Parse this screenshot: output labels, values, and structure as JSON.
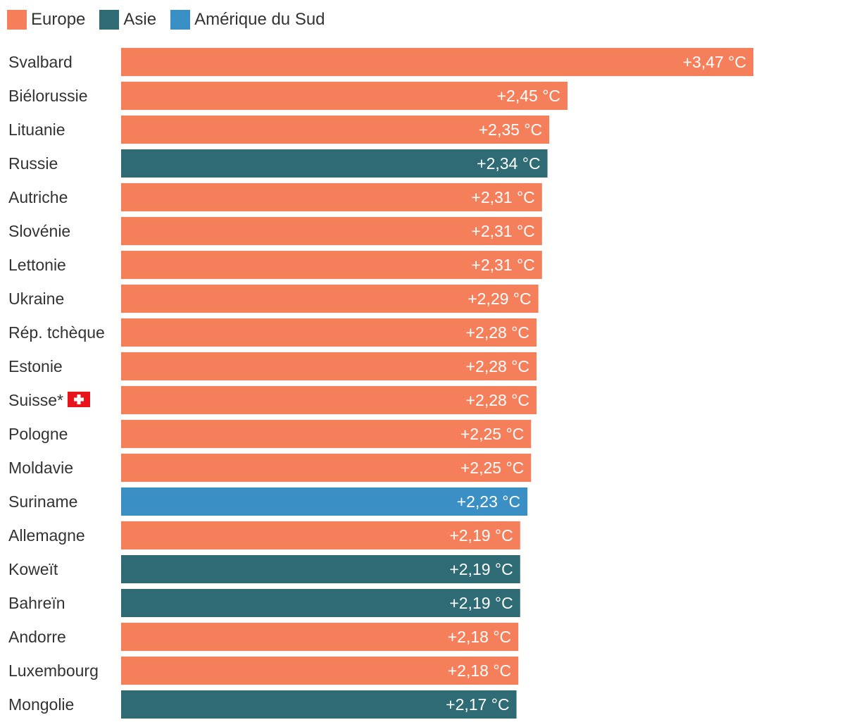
{
  "legend": [
    {
      "label": "Europe",
      "color": "#f47f5a"
    },
    {
      "label": "Asie",
      "color": "#2e6b74"
    },
    {
      "label": "Amérique du Sud",
      "color": "#3a8fc4"
    }
  ],
  "chart_data": {
    "type": "bar",
    "orientation": "horizontal",
    "unit": "°C",
    "categories": [
      "Svalbard",
      "Biélorussie",
      "Lituanie",
      "Russie",
      "Autriche",
      "Slovénie",
      "Lettonie",
      "Ukraine",
      "Rép. tchèque",
      "Estonie",
      "Suisse*",
      "Pologne",
      "Moldavie",
      "Suriname",
      "Allemagne",
      "Koweït",
      "Bahreïn",
      "Andorre",
      "Luxembourg",
      "Mongolie"
    ],
    "values": [
      3.47,
      2.45,
      2.35,
      2.34,
      2.31,
      2.31,
      2.31,
      2.29,
      2.28,
      2.28,
      2.28,
      2.25,
      2.25,
      2.23,
      2.19,
      2.19,
      2.19,
      2.18,
      2.18,
      2.17
    ],
    "value_labels": [
      "+3,47 °C",
      "+2,45 °C",
      "+2,35 °C",
      "+2,34 °C",
      "+2,31 °C",
      "+2,31 °C",
      "+2,31 °C",
      "+2,29 °C",
      "+2,28 °C",
      "+2,28 °C",
      "+2,28 °C",
      "+2,25 °C",
      "+2,25 °C",
      "+2,23 °C",
      "+2,19 °C",
      "+2,19 °C",
      "+2,19 °C",
      "+2,18 °C",
      "+2,18 °C",
      "+2,17 °C"
    ],
    "groups": [
      "Europe",
      "Europe",
      "Europe",
      "Asie",
      "Europe",
      "Europe",
      "Europe",
      "Europe",
      "Europe",
      "Europe",
      "Europe",
      "Europe",
      "Europe",
      "Amérique du Sud",
      "Europe",
      "Asie",
      "Asie",
      "Europe",
      "Europe",
      "Asie"
    ],
    "flag_icon": {
      "category": "Suisse*",
      "icon": "swiss-flag-icon"
    },
    "xlim": [
      0,
      3.47
    ],
    "grid": false,
    "legend_position": "top-left",
    "title": "",
    "xlabel": "",
    "ylabel": ""
  }
}
